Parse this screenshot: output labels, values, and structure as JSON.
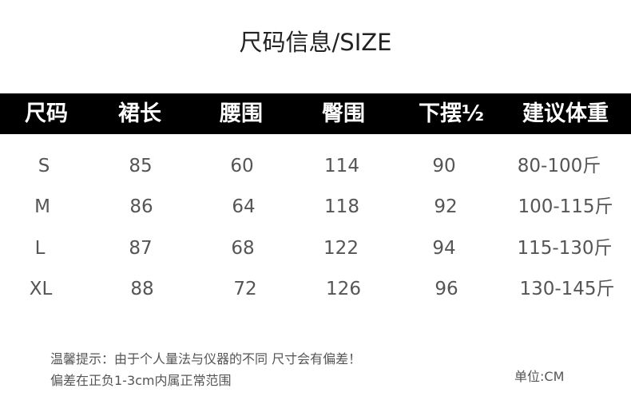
{
  "title": "尺码信息/SIZE",
  "headers": [
    "尺码",
    "裙长",
    "腰围",
    "臀围",
    "下摆½",
    "建议体重"
  ],
  "rows": [
    [
      "S",
      "85",
      "60",
      "114",
      "90",
      "80-100斤"
    ],
    [
      "M",
      "86",
      "64",
      "118",
      "92",
      "100-115斤"
    ],
    [
      "L",
      "87",
      "68",
      "122",
      "94",
      "115-130斤"
    ],
    [
      "XL",
      "88",
      "72",
      "126",
      "96",
      "130-145斤"
    ]
  ],
  "notes": {
    "line1": "温馨提示：由于个人量法与仪器的不同 尺寸会有偏差！",
    "line2": "偏差在正负1-3cm内属正常范围",
    "unit": "单位:CM"
  }
}
